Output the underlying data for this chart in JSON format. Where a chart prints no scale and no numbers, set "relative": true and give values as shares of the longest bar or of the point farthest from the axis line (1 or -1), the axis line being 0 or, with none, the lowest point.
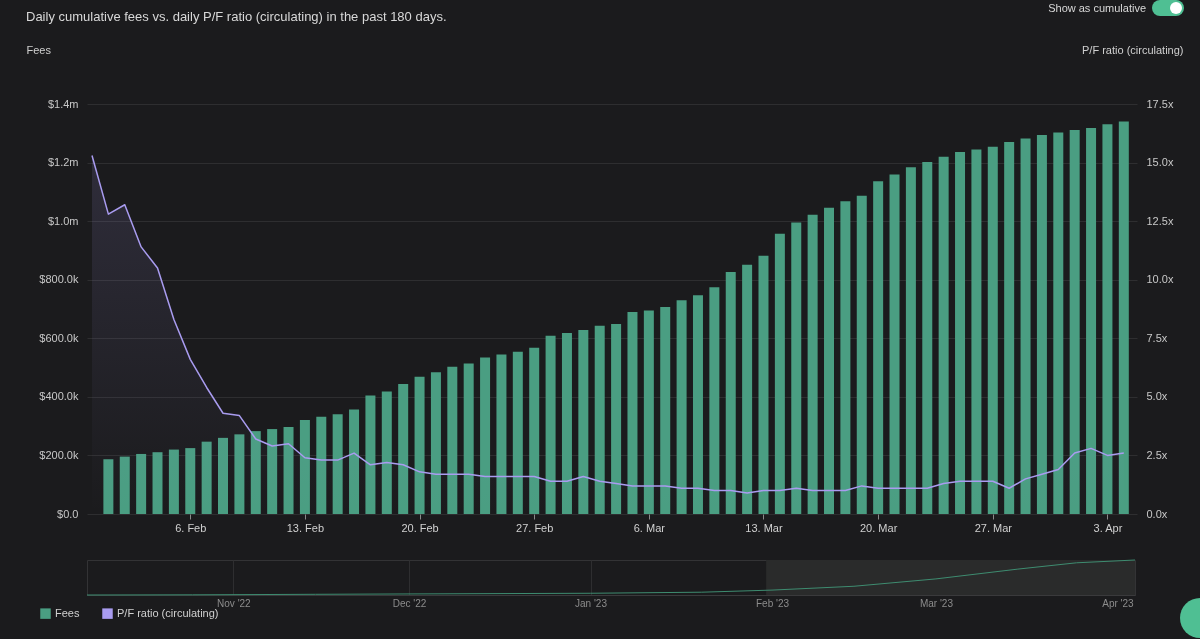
{
  "chart_data": [
    {
      "type": "bar",
      "title": "Daily cumulative fees vs. daily P/F ratio (circulating) in the past 180 days.",
      "ylabel": "Fees",
      "y2label": "P/F ratio (circulating)",
      "annotations": [
        "Show as cumulative"
      ],
      "xlim": [
        "2023-01-31",
        "2023-04-04T12:00"
      ],
      "xticks": [
        {
          "value": "2023-02-06",
          "label": "6. Feb"
        },
        {
          "value": "2023-02-13",
          "label": "13. Feb"
        },
        {
          "value": "2023-02-20",
          "label": "20. Feb"
        },
        {
          "value": "2023-02-27",
          "label": "27. Feb"
        },
        {
          "value": "2023-03-06",
          "label": "6. Mar"
        },
        {
          "value": "2023-03-13",
          "label": "13. Mar"
        },
        {
          "value": "2023-03-20",
          "label": "20. Mar"
        },
        {
          "value": "2023-03-27",
          "label": "27. Mar"
        },
        {
          "value": "2023-04-03",
          "label": "3. Apr"
        }
      ],
      "ylim": [
        0,
        1400000
      ],
      "yticks": [
        {
          "value": 0,
          "label": "$0.0"
        },
        {
          "value": 200000,
          "label": "$200.0k"
        },
        {
          "value": 400000,
          "label": "$400.0k"
        },
        {
          "value": 600000,
          "label": "$600.0k"
        },
        {
          "value": 800000,
          "label": "$800.0k"
        },
        {
          "value": 1000000,
          "label": "$1.0m"
        },
        {
          "value": 1200000,
          "label": "$1.2m"
        },
        {
          "value": 1400000,
          "label": "$1.4m"
        }
      ],
      "y2lim": [
        0,
        17.5
      ],
      "y2ticks": [
        {
          "value": 0,
          "label": "0.0x"
        },
        {
          "value": 2.5,
          "label": "2.5x"
        },
        {
          "value": 5,
          "label": "5.0x"
        },
        {
          "value": 7.5,
          "label": "7.5x"
        },
        {
          "value": 10,
          "label": "10.0x"
        },
        {
          "value": 12.5,
          "label": "12.5x"
        },
        {
          "value": 15,
          "label": "15.0x"
        },
        {
          "value": 17.5,
          "label": "17.5x"
        }
      ],
      "grid": "y",
      "legend": "bottom left",
      "series": [
        {
          "name": "Fees",
          "type": "bar",
          "color": "#4a9e82",
          "x": [
            "2023-02-01",
            "2023-02-02",
            "2023-02-03",
            "2023-02-04",
            "2023-02-05",
            "2023-02-06",
            "2023-02-07",
            "2023-02-08",
            "2023-02-09",
            "2023-02-10",
            "2023-02-11",
            "2023-02-12",
            "2023-02-13",
            "2023-02-14",
            "2023-02-15",
            "2023-02-16",
            "2023-02-17",
            "2023-02-18",
            "2023-02-19",
            "2023-02-20",
            "2023-02-21",
            "2023-02-22",
            "2023-02-23",
            "2023-02-24",
            "2023-02-25",
            "2023-02-26",
            "2023-02-27",
            "2023-02-28",
            "2023-03-01",
            "2023-03-02",
            "2023-03-03",
            "2023-03-04",
            "2023-03-05",
            "2023-03-06",
            "2023-03-07",
            "2023-03-08",
            "2023-03-09",
            "2023-03-10",
            "2023-03-11",
            "2023-03-12",
            "2023-03-13",
            "2023-03-14",
            "2023-03-15",
            "2023-03-16",
            "2023-03-17",
            "2023-03-18",
            "2023-03-19",
            "2023-03-20",
            "2023-03-21",
            "2023-03-22",
            "2023-03-23",
            "2023-03-24",
            "2023-03-25",
            "2023-03-26",
            "2023-03-27",
            "2023-03-28",
            "2023-03-29",
            "2023-03-30",
            "2023-03-31",
            "2023-04-01",
            "2023-04-02",
            "2023-04-03",
            "2023-04-04"
          ],
          "values": [
            187000,
            196000,
            205000,
            211000,
            220000,
            225000,
            247000,
            260000,
            272000,
            283000,
            290000,
            297000,
            321000,
            332000,
            341000,
            357000,
            405000,
            418000,
            444000,
            469000,
            484000,
            503000,
            514000,
            534000,
            545000,
            554000,
            568000,
            609000,
            618000,
            628000,
            643000,
            649000,
            690000,
            695000,
            707000,
            730000,
            747000,
            774000,
            826000,
            851000,
            882000,
            957000,
            995000,
            1022000,
            1046000,
            1068000,
            1087000,
            1136000,
            1159000,
            1184000,
            1202000,
            1220000,
            1236000,
            1245000,
            1254000,
            1270000,
            1282000,
            1294000,
            1303000,
            1311000,
            1318000,
            1331000,
            1340000
          ]
        },
        {
          "name": "P/F ratio (circulating)",
          "type": "area",
          "axis": "y2",
          "color": "#a99cf0",
          "x": [
            "2023-01-31",
            "2023-02-01",
            "2023-02-02",
            "2023-02-03",
            "2023-02-04",
            "2023-02-05",
            "2023-02-06",
            "2023-02-07",
            "2023-02-08",
            "2023-02-09",
            "2023-02-10",
            "2023-02-11",
            "2023-02-12",
            "2023-02-13",
            "2023-02-14",
            "2023-02-15",
            "2023-02-16",
            "2023-02-17",
            "2023-02-18",
            "2023-02-19",
            "2023-02-20",
            "2023-02-21",
            "2023-02-22",
            "2023-02-23",
            "2023-02-24",
            "2023-02-25",
            "2023-02-26",
            "2023-02-27",
            "2023-02-28",
            "2023-03-01",
            "2023-03-02",
            "2023-03-03",
            "2023-03-04",
            "2023-03-05",
            "2023-03-06",
            "2023-03-07",
            "2023-03-08",
            "2023-03-09",
            "2023-03-10",
            "2023-03-11",
            "2023-03-12",
            "2023-03-13",
            "2023-03-14",
            "2023-03-15",
            "2023-03-16",
            "2023-03-17",
            "2023-03-18",
            "2023-03-19",
            "2023-03-20",
            "2023-03-21",
            "2023-03-22",
            "2023-03-23",
            "2023-03-24",
            "2023-03-25",
            "2023-03-26",
            "2023-03-27",
            "2023-03-28",
            "2023-03-29",
            "2023-03-30",
            "2023-03-31",
            "2023-04-01",
            "2023-04-02",
            "2023-04-03",
            "2023-04-04"
          ],
          "values": [
            15.3,
            12.8,
            13.2,
            11.4,
            10.5,
            8.3,
            6.6,
            5.4,
            4.3,
            4.2,
            3.2,
            2.9,
            3.0,
            2.4,
            2.3,
            2.3,
            2.6,
            2.1,
            2.2,
            2.1,
            1.8,
            1.7,
            1.7,
            1.7,
            1.6,
            1.6,
            1.6,
            1.6,
            1.4,
            1.4,
            1.6,
            1.4,
            1.3,
            1.2,
            1.2,
            1.2,
            1.1,
            1.1,
            1.0,
            1.0,
            0.9,
            1.0,
            1.0,
            1.1,
            1.0,
            1.0,
            1.0,
            1.2,
            1.1,
            1.1,
            1.1,
            1.1,
            1.3,
            1.4,
            1.4,
            1.4,
            1.1,
            1.5,
            1.7,
            1.9,
            2.6,
            2.8,
            2.5,
            2.6
          ]
        }
      ]
    },
    {
      "type": "line",
      "relative": true,
      "color": "#3e8c70",
      "grid": "x",
      "x": [
        "2022-10-07",
        "2022-10-25",
        "2022-11-15",
        "2022-12-01",
        "2023-01-01",
        "2023-01-20",
        "2023-02-01",
        "2023-02-15",
        "2023-03-01",
        "2023-03-15",
        "2023-03-25",
        "2023-04-04"
      ],
      "values": [
        0,
        0.005,
        0.02,
        0.03,
        0.05,
        0.08,
        0.14,
        0.25,
        0.46,
        0.74,
        0.92,
        1
      ],
      "xlim": [
        "2022-10-07",
        "2023-04-04"
      ],
      "xticks": [
        {
          "value": "2022-11-01",
          "label": "Nov '22"
        },
        {
          "value": "2022-12-01",
          "label": "Dec '22"
        },
        {
          "value": "2023-01-01",
          "label": "Jan '23"
        },
        {
          "value": "2023-02-01",
          "label": "Feb '23"
        },
        {
          "value": "2023-03-01",
          "label": "Mar '23"
        },
        {
          "value": "2023-04-01",
          "label": "Apr '23"
        }
      ],
      "bands": [
        {
          "axis": "x",
          "from": "2023-01-31",
          "to": "2023-04-04",
          "color": "#2a2b2b"
        }
      ]
    }
  ]
}
